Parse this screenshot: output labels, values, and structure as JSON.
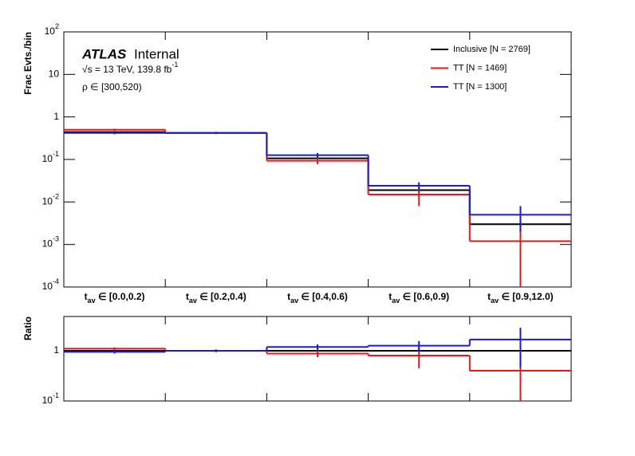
{
  "chart_data": [
    {
      "type": "step",
      "ylabel": "Frac Evts./bin",
      "annotations": [
        "ATLAS",
        "Internal",
        "√s = 13 TeV, 139.8 fb^-1",
        "ρ ∈ [300,520)"
      ],
      "categories": [
        "t_av ∈ [0.0,0.2)",
        "t_av ∈ [0.2,0.4)",
        "t_av ∈ [0.4,0.6)",
        "t_av ∈ [0.6,0.9)",
        "t_av ∈ [0.9,12.0)"
      ],
      "log_y": true,
      "ylim": [
        0.0001,
        100
      ],
      "yticks": [
        {
          "value": 100,
          "label": "10^2"
        },
        10,
        1,
        {
          "value": 0.1,
          "label": "10^-1"
        },
        {
          "value": 0.01,
          "label": "10^-2"
        },
        {
          "value": 0.001,
          "label": "10^-3"
        },
        {
          "value": 0.0001,
          "label": "10^-4"
        }
      ],
      "legend": "upper right",
      "series": [
        {
          "name": "Inclusive [N = 2769]",
          "color": "#000000",
          "values": [
            0.44,
            0.42,
            0.106,
            0.019,
            0.003
          ],
          "errors": [
            0.02,
            0.02,
            0.01,
            0.002,
            0.0005
          ]
        },
        {
          "name": "TT [N = 1469]",
          "color": "#e8151b",
          "values": [
            0.5,
            0.42,
            0.093,
            0.015,
            0.0012
          ],
          "errors": [
            0.03,
            0.025,
            0.015,
            0.007,
            0.0012
          ]
        },
        {
          "name": "TT [N = 1300]",
          "color": "#1a1ad8",
          "values": [
            0.42,
            0.42,
            0.126,
            0.024,
            0.005
          ],
          "errors": [
            0.03,
            0.025,
            0.016,
            0.005,
            0.003
          ]
        }
      ]
    },
    {
      "type": "step",
      "ylabel": "Ratio",
      "log_y": true,
      "ylim": [
        0.1,
        4.8
      ],
      "yticks": [
        1,
        {
          "value": 0.1,
          "label": "10^-1"
        }
      ],
      "series": [
        {
          "color": "#000000",
          "values": [
            1,
            1,
            1,
            1,
            1
          ]
        },
        {
          "color": "#e8151b",
          "values": [
            1.1,
            1.0,
            0.88,
            0.8,
            0.4
          ],
          "errors": [
            0.07,
            0.06,
            0.14,
            0.35,
            0.45
          ]
        },
        {
          "color": "#1a1ad8",
          "values": [
            0.95,
            1.0,
            1.19,
            1.26,
            1.67
          ],
          "errors": [
            0.07,
            0.06,
            0.15,
            0.3,
            1.2
          ]
        }
      ]
    }
  ]
}
